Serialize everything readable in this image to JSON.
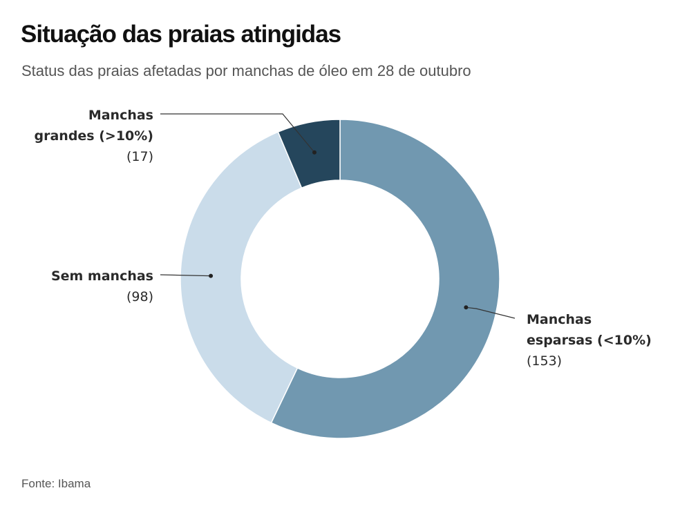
{
  "header": {
    "title": "Situação das praias atingidas",
    "subtitle": "Status das praias afetadas por manchas de óleo em 28 de outubro"
  },
  "footer": {
    "source": "Fonte: Ibama"
  },
  "chart_data": {
    "type": "pie",
    "variant": "donut",
    "title": "Situação das praias atingidas",
    "subtitle": "Status das praias afetadas por manchas de óleo em 28 de outubro",
    "slices": [
      {
        "id": "esparsas",
        "label_lines": [
          "Manchas",
          "esparsas (<10%)"
        ],
        "count_label": "(153)",
        "value": 153,
        "color": "#7198b0"
      },
      {
        "id": "sem",
        "label_lines": [
          "Sem manchas"
        ],
        "count_label": "(98)",
        "value": 98,
        "color": "#cadcea"
      },
      {
        "id": "grandes",
        "label_lines": [
          "Manchas",
          "grandes (>10%)"
        ],
        "count_label": "(17)",
        "value": 17,
        "color": "#25465c"
      }
    ],
    "start": "12 o'clock",
    "direction": "clockwise",
    "slice_border_color": "#ffffff",
    "leader_color": "#333333"
  }
}
